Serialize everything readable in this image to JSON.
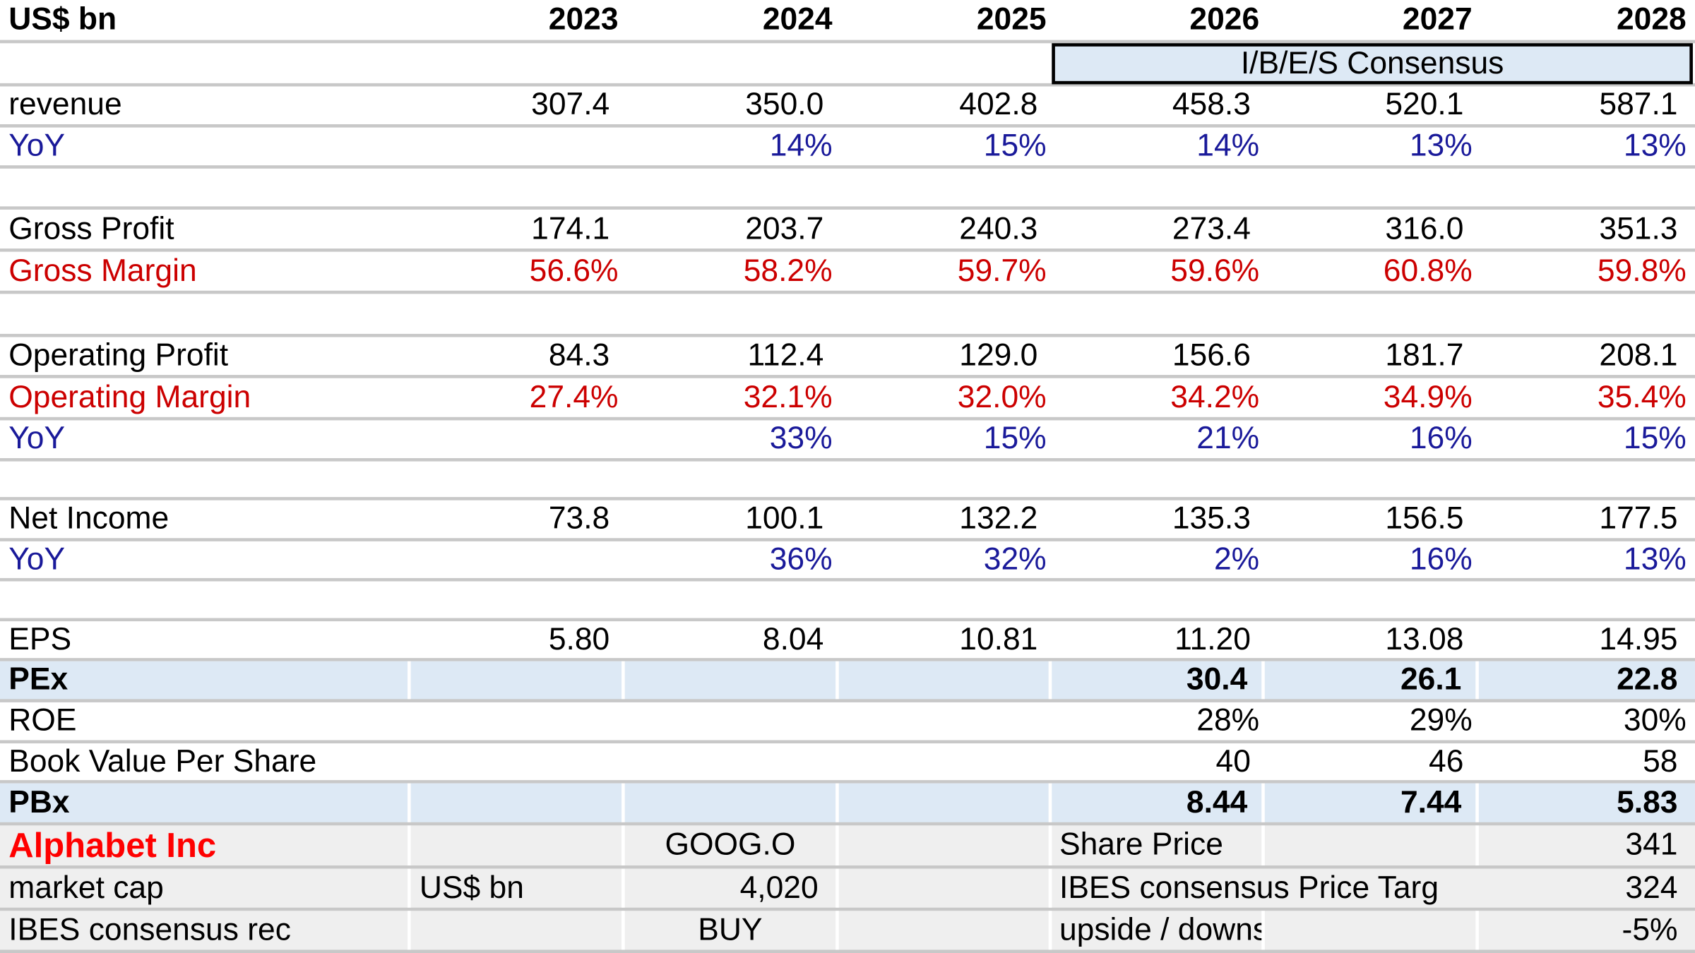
{
  "header": {
    "unit": "US$ bn",
    "years": [
      "2023",
      "2024",
      "2025",
      "2026",
      "2027",
      "2028"
    ],
    "consensus_label": "I/B/E/S Consensus"
  },
  "revenue": {
    "label": "revenue",
    "values": [
      "307.4",
      "350.0",
      "402.8",
      "458.3",
      "520.1",
      "587.1"
    ]
  },
  "revenue_yoy": {
    "label": "YoY",
    "values": [
      "",
      "14%",
      "15%",
      "14%",
      "13%",
      "13%"
    ]
  },
  "gross_profit": {
    "label": "Gross Profit",
    "values": [
      "174.1",
      "203.7",
      "240.3",
      "273.4",
      "316.0",
      "351.3"
    ]
  },
  "gross_margin": {
    "label": "Gross Margin",
    "values": [
      "56.6%",
      "58.2%",
      "59.7%",
      "59.6%",
      "60.8%",
      "59.8%"
    ]
  },
  "operating_profit": {
    "label": "Operating Profit",
    "values": [
      "84.3",
      "112.4",
      "129.0",
      "156.6",
      "181.7",
      "208.1"
    ]
  },
  "operating_margin": {
    "label": "Operating Margin",
    "values": [
      "27.4%",
      "32.1%",
      "32.0%",
      "34.2%",
      "34.9%",
      "35.4%"
    ]
  },
  "operating_yoy": {
    "label": "YoY",
    "values": [
      "",
      "33%",
      "15%",
      "21%",
      "16%",
      "15%"
    ]
  },
  "net_income": {
    "label": "Net Income",
    "values": [
      "73.8",
      "100.1",
      "132.2",
      "135.3",
      "156.5",
      "177.5"
    ]
  },
  "net_income_yoy": {
    "label": "YoY",
    "values": [
      "",
      "36%",
      "32%",
      "2%",
      "16%",
      "13%"
    ]
  },
  "eps": {
    "label": "EPS",
    "values": [
      "5.80",
      "8.04",
      "10.81",
      "11.20",
      "13.08",
      "14.95"
    ]
  },
  "pex": {
    "label": "PEx",
    "values": [
      "",
      "",
      "",
      "30.4",
      "26.1",
      "22.8"
    ]
  },
  "roe": {
    "label": "ROE",
    "values": [
      "",
      "",
      "",
      "28%",
      "29%",
      "30%"
    ]
  },
  "bvps": {
    "label": "Book Value Per Share",
    "values": [
      "",
      "",
      "",
      "40",
      "46",
      "58"
    ]
  },
  "pbx": {
    "label": "PBx",
    "values": [
      "",
      "",
      "",
      "8.44",
      "7.44",
      "5.83"
    ]
  },
  "summary": {
    "company": "Alphabet Inc",
    "ticker": "GOOG.O",
    "share_price_label": "Share Price",
    "share_price": "341",
    "market_cap_label": "market cap",
    "market_cap_unit": "US$ bn",
    "market_cap": "4,020",
    "price_target_label": "IBES consensus Price Targ",
    "price_target": "324",
    "rec_label": "IBES consensus rec",
    "rec": "BUY",
    "upside_label": "upside / downside",
    "upside": "-5%"
  },
  "colors": {
    "blue_text": "#1a1a9a",
    "red_text": "#cc0000",
    "company_red": "#ff0000",
    "highlight_fill": "#dde9f5",
    "summary_fill": "#efefef",
    "grid_line": "#c8c8c8"
  }
}
